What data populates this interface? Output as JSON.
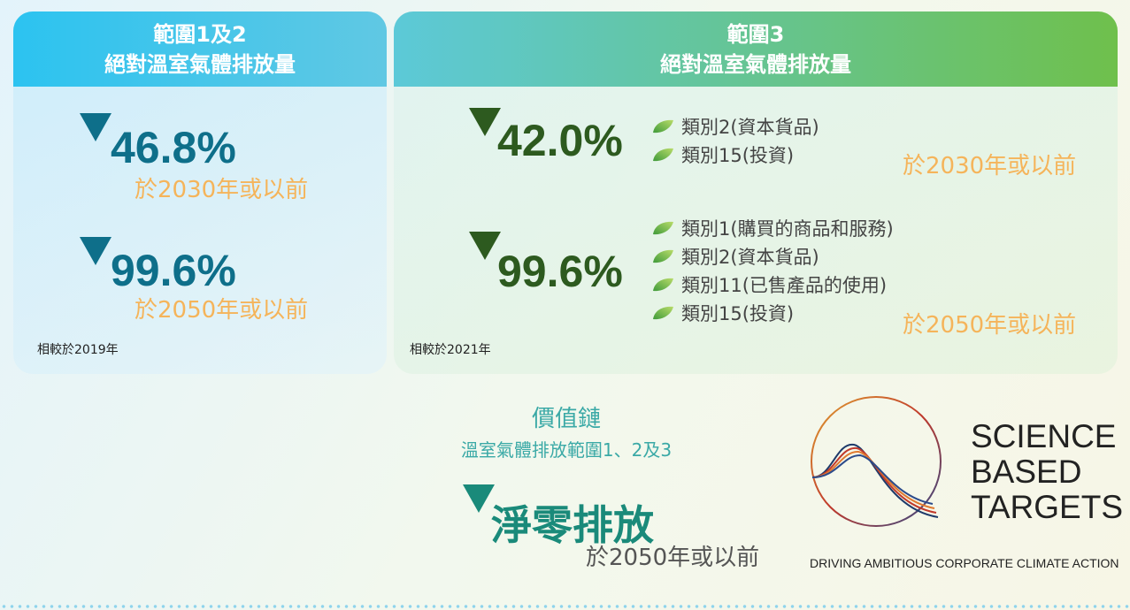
{
  "panels": [
    {
      "title_lines": [
        "範圍1及2",
        "絕對溫室氣體排放量"
      ],
      "targets": [
        {
          "value": "46.8%",
          "deadline": "於2030年或以前"
        },
        {
          "value": "99.6%",
          "deadline": "於2050年或以前"
        }
      ],
      "baseline": "相較於2019年"
    },
    {
      "title_lines": [
        "範圍3",
        "絕對溫室氣體排放量"
      ],
      "targets": [
        {
          "value": "42.0%",
          "categories": [
            "類別2(資本貨品)",
            "類別15(投資)"
          ],
          "deadline": "於2030年或以前"
        },
        {
          "value": "99.6%",
          "categories": [
            "類別1(購買的商品和服務)",
            "類別2(資本貨品)",
            "類別11(已售產品的使用)",
            "類別15(投資)"
          ],
          "deadline": "於2050年或以前"
        }
      ],
      "baseline": "相較於2021年"
    }
  ],
  "value_chain": {
    "title": "價值鏈",
    "subtitle": "溫室氣體排放範圍1、2及3",
    "target": "淨零排放",
    "deadline": "於2050年或以前"
  },
  "logo": {
    "lines": [
      "SCIENCE",
      "BASED",
      "TARGETS"
    ],
    "tagline": "DRIVING AMBITIOUS CORPORATE CLIMATE ACTION"
  }
}
